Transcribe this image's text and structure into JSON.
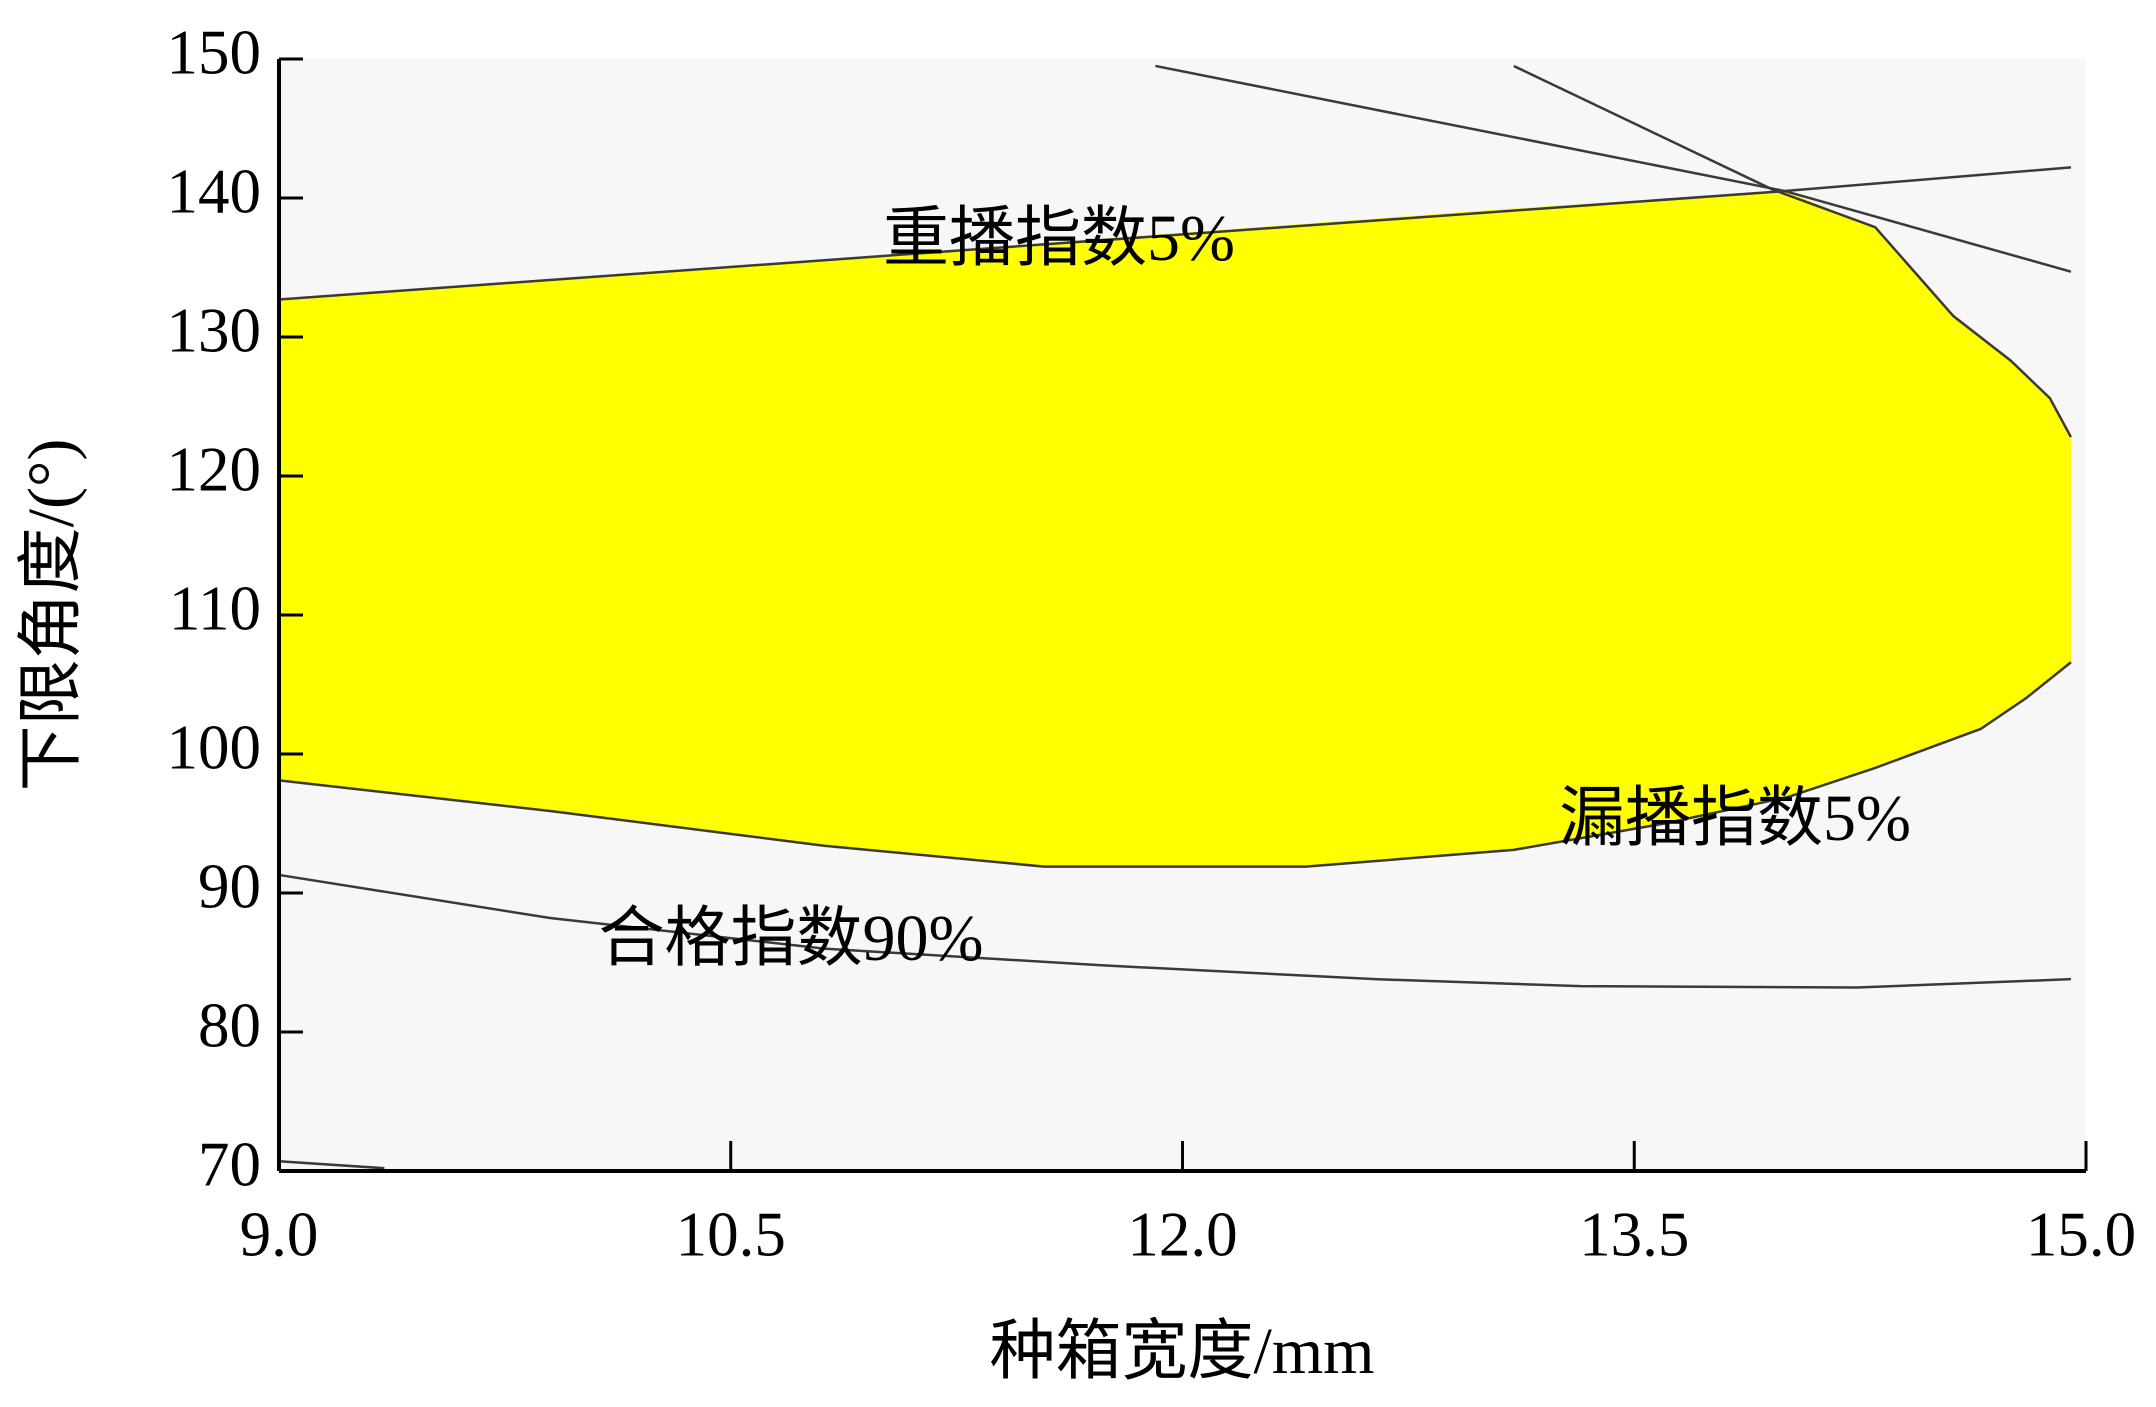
{
  "chart_data": {
    "type": "contour",
    "xlabel": "种箱宽度/mm",
    "ylabel": "下限角度/(°)",
    "xlim": [
      9,
      15
    ],
    "ylim": [
      70,
      150
    ],
    "xticks": [
      {
        "value": 9,
        "label": "9.0"
      },
      10.5,
      {
        "value": 12,
        "label": "12.0"
      },
      13.5,
      {
        "value": 15,
        "label": "15.0"
      }
    ],
    "yticks": [
      70,
      80,
      90,
      100,
      110,
      120,
      130,
      140,
      150
    ],
    "background": "#f7f7f7",
    "region": {
      "color": "#ffff00",
      "x": [
        9.0,
        10.0,
        11.0,
        12.0,
        13.0,
        14.0,
        14.3,
        14.56,
        14.75,
        14.88,
        14.95,
        14.95,
        14.8,
        14.65,
        14.3,
        14.01,
        13.6,
        13.1,
        12.41,
        11.54,
        10.81,
        9.9,
        9.0
      ],
      "y": [
        132.7,
        134.3,
        135.9,
        137.5,
        139.1,
        140.5,
        137.9,
        131.5,
        128.3,
        125.6,
        122.8,
        106.6,
        104.0,
        101.8,
        99.0,
        96.9,
        95.0,
        93.1,
        91.9,
        91.9,
        93.4,
        95.9,
        98.1
      ]
    },
    "contours": [
      {
        "color": "#3a3a3a",
        "x": [
          9.0,
          14.0,
          14.95
        ],
        "y": [
          132.7,
          140.5,
          142.2
        ]
      },
      {
        "color": "#3a3a3a",
        "x": [
          11.91,
          14.0,
          14.95
        ],
        "y": [
          149.5,
          140.5,
          134.7
        ]
      },
      {
        "color": "#3a3a3a",
        "x": [
          13.1,
          13.96,
          14.3,
          14.56,
          14.75,
          14.88,
          14.95
        ],
        "y": [
          149.5,
          140.6,
          137.9,
          131.5,
          128.3,
          125.6,
          122.8
        ]
      },
      {
        "color": "#3a3a3a",
        "x": [
          14.95,
          14.8,
          14.65,
          14.3,
          14.01,
          13.6,
          13.1,
          12.41,
          11.54,
          10.81,
          9.9,
          9.0
        ],
        "y": [
          106.6,
          104.0,
          101.8,
          99.0,
          96.9,
          95.0,
          93.1,
          91.9,
          91.9,
          93.4,
          95.9,
          98.1
        ]
      },
      {
        "color": "#3a3a3a",
        "x": [
          9.0,
          9.9,
          10.81,
          11.73,
          12.64,
          13.32,
          14.24,
          14.95
        ],
        "y": [
          91.3,
          88.2,
          86.0,
          84.8,
          83.8,
          83.3,
          83.2,
          83.8
        ]
      },
      {
        "color": "#3a3a3a",
        "x": [
          9.0,
          9.35
        ],
        "y": [
          70.7,
          70.2
        ]
      }
    ],
    "annotations": [
      "重播指数5%",
      "漏播指数5%",
      "合格指数90%"
    ]
  }
}
